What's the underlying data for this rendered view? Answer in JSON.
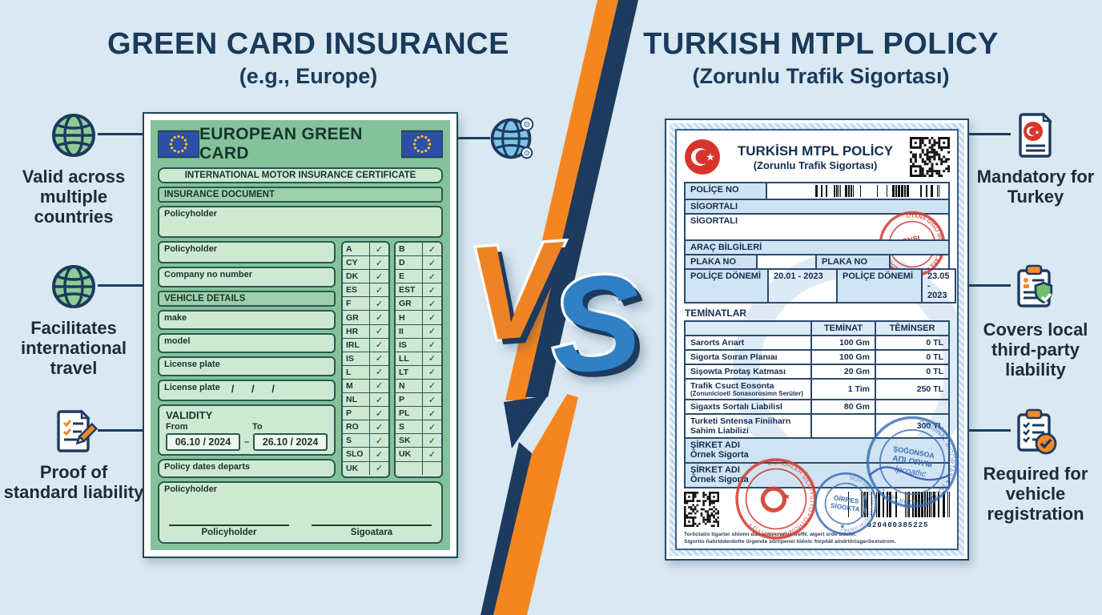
{
  "colors": {
    "accent_orange": "#f5861f",
    "navy": "#1d3a5f",
    "doc_green": "#85c29b",
    "blue": "#2f80c4",
    "stamp_red": "#d23b2f",
    "stamp_blue": "#3a6db5"
  },
  "icons": {
    "check_glyph": "✓",
    "left": [
      "globe-icon",
      "globe-icon",
      "document-pencil-icon"
    ],
    "right": [
      "turkish-document-icon",
      "clipboard-shield-icon",
      "clipboard-check-icon"
    ]
  },
  "center": {
    "vs_v": "V",
    "vs_s": "S"
  },
  "left_panel": {
    "title": "GREEN CARD INSURANCE",
    "subtitle": "(e.g., Europe)",
    "annotations": [
      {
        "label": "Valid across multiple countries"
      },
      {
        "label": "Facilitates international travel"
      },
      {
        "label": "Proof of standard liability"
      }
    ],
    "document": {
      "header": "EUROPEAN GREEN CARD",
      "certificate_title": "INTERNATIONAL MOTOR INSURANCE CERTIFICATE",
      "section_insurance": "INSURANCE DOCUMENT",
      "field_policyholder_1": "Policyholder",
      "field_policyholder_2": "Policyholder",
      "field_company": "Company no number",
      "section_vehicle": "VEHICLE DETAILS",
      "field_make": "make",
      "field_model": "model",
      "field_license_1": "License plate",
      "field_license_2": "License plate",
      "license_slashes": "/      /      /",
      "section_validity": "VALIDITY",
      "validity_from_label": "From",
      "validity_to_label": "To",
      "validity_from": "06.10 / 2024",
      "validity_dash": "–",
      "validity_to": "26.10 / 2024",
      "field_policy_dates": "Policy dates departs",
      "field_policyholder_3": "Policyholder",
      "signature_left": "Policyholder",
      "signature_right": "Sigoatara",
      "countries_col1": [
        "A",
        "CY",
        "DK",
        "ES",
        "F",
        "GR",
        "HR",
        "IRL",
        "IS",
        "L",
        "M",
        "NL",
        "P",
        "RO",
        "S",
        "SLO",
        "UK"
      ],
      "countries_col2": [
        "B",
        "D",
        "E",
        "EST",
        "GR",
        "H",
        "II",
        "IS",
        "LL",
        "LT",
        "N",
        "P",
        "PL",
        "S",
        "SK",
        "UK",
        ""
      ]
    }
  },
  "right_panel": {
    "title": "TURKISH MTPL POLICY",
    "subtitle": "(Zorunlu Trafik Sigortası)",
    "annotations": [
      {
        "label": "Mandatory for Turkey"
      },
      {
        "label": "Covers local third-party liability"
      },
      {
        "label": "Required for vehicle registration"
      }
    ],
    "document": {
      "header_title": "TURKİSH MTPL POLİCY",
      "header_subtitle": "(Zorunlu Trafik Sigortası)",
      "police_no_label": "POLİÇE NO",
      "sigortali_band": "SİGORTALI",
      "sigortali_label": "SİGORTALI",
      "stamp_snsi": "SNSI",
      "arac_band": "ARAÇ BİLGİLERİ",
      "plaka_label_1": "PLAKA NO",
      "plaka_label_2": "PLAKA NO",
      "donem_label_1": "POLİÇE DÖNEMİ",
      "donem_value_1": "20.01 - 2023",
      "donem_label_2": "POLİÇE DÖNEMİ",
      "donem_value_2": "23.05 - 2023",
      "teminatlar_title": "TEMİNATLAR",
      "table": {
        "header_teminat": "TEMİNAT",
        "header_teminser": "TĒMİNSER",
        "rows": [
          {
            "name": "Sarorts Arıart",
            "sub": "",
            "teminat": "100 Gm",
            "teminser": "0 TL"
          },
          {
            "name": "Sigorta Soıran Planıaı",
            "sub": "",
            "teminat": "100 Gm",
            "teminser": "0 TL"
          },
          {
            "name": "Sişowta Protaş Katması",
            "sub": "",
            "teminat": "20 Gm",
            "teminser": "0 TL"
          },
          {
            "name": "Trafik Csuct Eosonta",
            "sub": "(Zonunicioetl Sonasorosimn Serüter)",
            "teminat": "1 Tim",
            "teminser": "250 TL"
          },
          {
            "name": "Sigaxts Sortalı Liabilisl",
            "sub": "",
            "teminat": "80 Gm",
            "teminser": ""
          },
          {
            "name": "Turketi Sntensa Finiiharn Sahim Liabilizi",
            "sub": "",
            "teminat": "",
            "teminser": "300 TL"
          }
        ]
      },
      "sirket_label_1": "ŞİRKET ADI",
      "sirket_value_1": "Örnek Sigorta",
      "sirket_label_2": "ŞİRKET ADI",
      "sirket_value_2": "Örnek Sigorta",
      "stamp_red_ring": "MÜHÜRLER SICĞIYILIYO • ÖTHÜN SIĞORTIYO •",
      "stamp_blue_small_1": "ÖİRRES",
      "stamp_blue_small_2": "SİOOKTA",
      "stamp_blue_big_ring": "ORİGİNAL SIGORTASI • TAKTIRA SIĞORTASI •",
      "stamp_blue_big_1": "ŞOĞONSOA",
      "stamp_blue_big_2": "AПLORYM",
      "stamp_blue_big_3": "İpcoatlıc",
      "barcode_number": "020400385225",
      "fine_print_1": "Torlictatio tigarter shiomı dan soitecnunlo trefN. algert srde bdaler.",
      "fine_print_2": "Sigortio ñahrldderdotte örgende sörnpenel tüöxtc fnrpöät alndrtörisgeröextstrom."
    }
  }
}
